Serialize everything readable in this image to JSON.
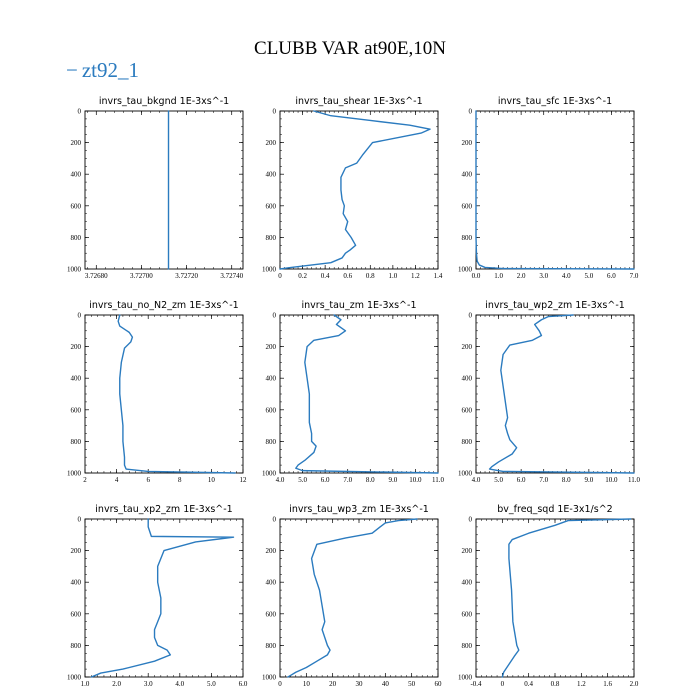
{
  "title": "CLUBB VAR at90E,10N",
  "legend": {
    "label": "zt92_1",
    "color": "#2b7bbf"
  },
  "chart_data": [
    {
      "type": "line",
      "title": "invrs_tau_bkgnd   1E-3xs^-1",
      "xlim": [
        3.72675,
        3.72745
      ],
      "xticks": [
        3.7268,
        3.727,
        3.7272,
        3.7274
      ],
      "xtick_labels": [
        "3.72680",
        "3.72700",
        "3.72720",
        "3.72740"
      ],
      "ylim": [
        0,
        1000
      ],
      "yticks": [
        0,
        200,
        400,
        600,
        800,
        1000
      ],
      "series": [
        {
          "x": [
            3.72712,
            3.72712
          ],
          "y": [
            0,
            1000
          ]
        }
      ]
    },
    {
      "type": "line",
      "title": "invrs_tau_shear   1E-3xs^-1",
      "xlim": [
        0,
        1.4
      ],
      "xticks": [
        0,
        0.2,
        0.4,
        0.6,
        0.8,
        1.0,
        1.2,
        1.4
      ],
      "xtick_labels": [
        "0",
        "0.2",
        "0.4",
        "0.6",
        "0.8",
        "1.0",
        "1.2",
        "1.4"
      ],
      "ylim": [
        0,
        1000
      ],
      "yticks": [
        0,
        200,
        400,
        600,
        800,
        1000
      ],
      "series": [
        {
          "x": [
            0.3,
            0.45,
            0.8,
            1.15,
            1.33,
            1.25,
            0.82,
            0.73,
            0.68,
            0.58,
            0.54,
            0.54,
            0.55,
            0.57,
            0.56,
            0.6,
            0.58,
            0.63,
            0.67,
            0.62,
            0.58,
            0.55,
            0.45,
            0.1,
            0.0
          ],
          "y": [
            0,
            30,
            60,
            90,
            115,
            140,
            200,
            280,
            330,
            360,
            420,
            500,
            560,
            600,
            650,
            700,
            750,
            800,
            850,
            880,
            900,
            930,
            960,
            990,
            1000
          ]
        }
      ]
    },
    {
      "type": "line",
      "title": "invrs_tau_sfc   1E-3xs^-1",
      "xlim": [
        0,
        7
      ],
      "xticks": [
        0,
        1,
        2,
        3,
        4,
        5,
        6,
        7
      ],
      "xtick_labels": [
        "0.0",
        "1.0",
        "2.0",
        "3.0",
        "4.0",
        "5.0",
        "6.0",
        "7.0"
      ],
      "ylim": [
        0,
        1000
      ],
      "yticks": [
        0,
        200,
        400,
        600,
        800,
        1000
      ],
      "series": [
        {
          "x": [
            0.0,
            0.0,
            0.02,
            0.05,
            0.15,
            0.4,
            1.2,
            7.0
          ],
          "y": [
            0,
            800,
            900,
            950,
            975,
            990,
            997,
            1000
          ]
        }
      ]
    },
    {
      "type": "line",
      "title": "invrs_tau_no_N2_zm   1E-3xs^-1",
      "xlim": [
        2,
        12
      ],
      "xticks": [
        2,
        4,
        6,
        8,
        10,
        12
      ],
      "xtick_labels": [
        "2",
        "4",
        "6",
        "8",
        "10",
        "12"
      ],
      "ylim": [
        0,
        1000
      ],
      "yticks": [
        0,
        200,
        400,
        600,
        800,
        1000
      ],
      "series": [
        {
          "x": [
            4.2,
            4.1,
            4.2,
            4.8,
            5.0,
            4.9,
            4.5,
            4.3,
            4.2,
            4.2,
            4.3,
            4.4,
            4.4,
            4.5,
            4.5,
            4.6,
            6.0,
            11.5
          ],
          "y": [
            0,
            40,
            70,
            110,
            140,
            170,
            210,
            300,
            400,
            500,
            600,
            700,
            800,
            900,
            950,
            975,
            990,
            1000
          ]
        }
      ]
    },
    {
      "type": "line",
      "title": "invrs_tau_zm   1E-3xs^-1",
      "xlim": [
        4,
        11
      ],
      "xticks": [
        4,
        5,
        6,
        7,
        8,
        9,
        10,
        11
      ],
      "xtick_labels": [
        "4.0",
        "5.0",
        "6.0",
        "7.0",
        "8.0",
        "9.0",
        "10.0",
        "11.0"
      ],
      "ylim": [
        0,
        1000
      ],
      "yticks": [
        0,
        200,
        400,
        600,
        800,
        1000
      ],
      "series": [
        {
          "x": [
            6.4,
            6.7,
            6.5,
            6.9,
            6.6,
            5.5,
            5.2,
            5.1,
            5.2,
            5.3,
            5.3,
            5.3,
            5.4,
            5.4,
            5.6,
            5.5,
            5.1,
            4.8,
            4.7,
            5.0,
            11.0
          ],
          "y": [
            0,
            30,
            60,
            100,
            130,
            160,
            200,
            300,
            400,
            500,
            600,
            680,
            750,
            800,
            830,
            870,
            920,
            950,
            970,
            985,
            1000
          ]
        }
      ]
    },
    {
      "type": "line",
      "title": "invrs_tau_wp2_zm   1E-3xs^-1",
      "xlim": [
        4,
        11
      ],
      "xticks": [
        4,
        5,
        6,
        7,
        8,
        9,
        10,
        11
      ],
      "xtick_labels": [
        "4.0",
        "5.0",
        "6.0",
        "7.0",
        "8.0",
        "9.0",
        "10.0",
        "11.0"
      ],
      "ylim": [
        0,
        1000
      ],
      "yticks": [
        0,
        200,
        400,
        600,
        800,
        1000
      ],
      "series": [
        {
          "x": [
            8.3,
            7.2,
            6.9,
            6.6,
            6.8,
            6.9,
            6.5,
            5.5,
            5.2,
            5.1,
            5.2,
            5.3,
            5.4,
            5.3,
            5.4,
            5.5,
            5.8,
            5.6,
            5.0,
            4.7,
            4.6,
            5.2,
            11.0
          ],
          "y": [
            0,
            10,
            30,
            60,
            100,
            130,
            160,
            190,
            250,
            350,
            450,
            550,
            650,
            700,
            750,
            790,
            840,
            880,
            930,
            960,
            975,
            990,
            1000
          ]
        }
      ]
    },
    {
      "type": "line",
      "title": "invrs_tau_xp2_zm   1E-3xs^-1",
      "xlim": [
        1,
        6
      ],
      "xticks": [
        1,
        2,
        3,
        4,
        5,
        6
      ],
      "xtick_labels": [
        "1.0",
        "2.0",
        "3.0",
        "4.0",
        "5.0",
        "6.0"
      ],
      "ylim": [
        0,
        1000
      ],
      "yticks": [
        0,
        200,
        400,
        600,
        800,
        1000
      ],
      "series": [
        {
          "x": [
            3.0,
            3.0,
            3.1,
            5.7,
            5.3,
            4.5,
            3.5,
            3.3,
            3.3,
            3.4,
            3.4,
            3.3,
            3.2,
            3.2,
            3.3,
            3.6,
            3.7,
            3.2,
            2.2,
            1.5,
            1.2
          ],
          "y": [
            0,
            50,
            110,
            115,
            125,
            145,
            200,
            300,
            400,
            500,
            600,
            650,
            700,
            750,
            800,
            830,
            860,
            900,
            950,
            975,
            1000
          ]
        }
      ]
    },
    {
      "type": "line",
      "title": "invrs_tau_wp3_zm   1E-3xs^-1",
      "xlim": [
        0,
        60
      ],
      "xticks": [
        0,
        10,
        20,
        30,
        40,
        50,
        60
      ],
      "xtick_labels": [
        "0",
        "10",
        "20",
        "30",
        "40",
        "50",
        "60"
      ],
      "ylim": [
        0,
        1000
      ],
      "yticks": [
        0,
        200,
        400,
        600,
        800,
        1000
      ],
      "series": [
        {
          "x": [
            52,
            45,
            40,
            38,
            35,
            25,
            14,
            12,
            13,
            15,
            16,
            17,
            16,
            17,
            18,
            19,
            18,
            14,
            10,
            6,
            4,
            3
          ],
          "y": [
            0,
            10,
            25,
            50,
            90,
            120,
            160,
            250,
            350,
            450,
            550,
            650,
            700,
            750,
            800,
            830,
            860,
            900,
            940,
            970,
            990,
            1000
          ]
        }
      ]
    },
    {
      "type": "line",
      "title": "bv_freq_sqd   1E-3x1/s^2",
      "xlim": [
        -0.4,
        2.0
      ],
      "xticks": [
        -0.4,
        0,
        0.4,
        0.8,
        1.2,
        1.6,
        2.0
      ],
      "xtick_labels": [
        "-0.4",
        "0",
        "0.4",
        "0.8",
        "1.2",
        "1.6",
        "2.0"
      ],
      "ylim": [
        0,
        1000
      ],
      "yticks": [
        0,
        200,
        400,
        600,
        800,
        1000
      ],
      "series": [
        {
          "x": [
            1.95,
            1.0,
            0.8,
            0.4,
            0.15,
            0.1,
            0.1,
            0.12,
            0.14,
            0.15,
            0.16,
            0.18,
            0.2,
            0.22,
            0.25,
            0.18,
            0.1,
            0.02,
            0.0
          ],
          "y": [
            0,
            10,
            40,
            90,
            130,
            160,
            250,
            350,
            450,
            550,
            650,
            700,
            750,
            800,
            830,
            870,
            920,
            970,
            1000
          ]
        }
      ]
    }
  ]
}
